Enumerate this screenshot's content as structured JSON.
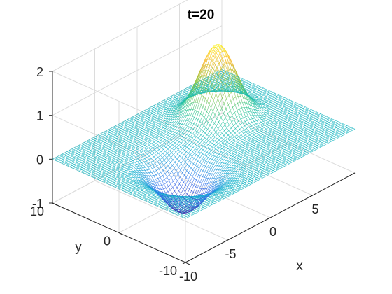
{
  "chart_data": {
    "type": "surface",
    "title": "t=20",
    "xlabel": "x",
    "ylabel": "y",
    "zlabel": "",
    "xlim": [
      -10,
      10
    ],
    "ylim": [
      -10,
      10
    ],
    "zlim": [
      -1,
      2
    ],
    "x_ticks": [
      -10,
      -5,
      0,
      5
    ],
    "y_ticks": [
      -10,
      0,
      10
    ],
    "z_ticks": [
      -1,
      0,
      1,
      2
    ],
    "x_tick_labels": [
      "-10",
      "-5",
      "0",
      "5"
    ],
    "y_tick_labels": [
      "-10",
      "0",
      "10"
    ],
    "z_tick_labels": [
      "-1",
      "0",
      "1",
      "2"
    ],
    "grid": true,
    "colormap": [
      "#3e26a8",
      "#2f6ff0",
      "#14b2cf",
      "#27c58e",
      "#9cc63b",
      "#fcba3d",
      "#f9fb0e"
    ],
    "surface_features": [
      {
        "kind": "peak",
        "x": 4,
        "y": 3,
        "z": 1.65
      },
      {
        "kind": "trough",
        "x": -4,
        "y": -2,
        "z": -1.0
      }
    ]
  }
}
